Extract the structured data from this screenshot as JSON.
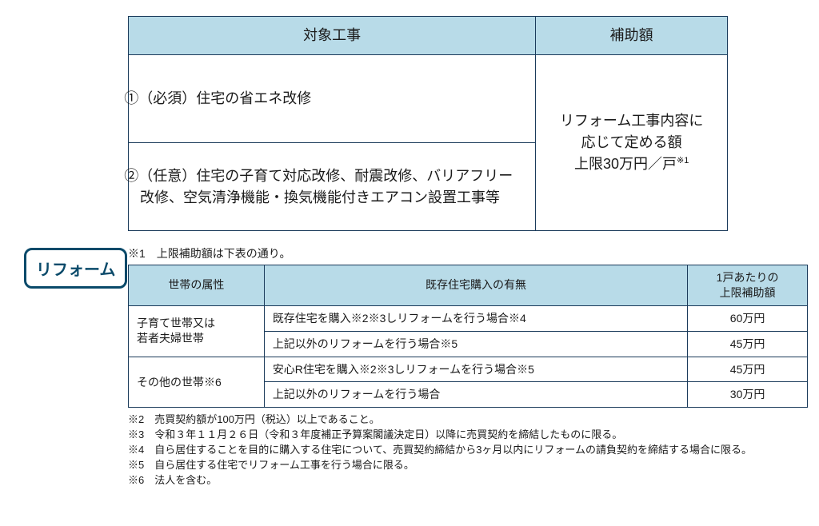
{
  "colors": {
    "header_bg": "#b8dbe8",
    "border": "#1a3a5a",
    "badge_border": "#0a4a6a",
    "text": "#1a1a1a",
    "page_bg": "#ffffff"
  },
  "badge": {
    "label": "リフォーム"
  },
  "table1": {
    "headers": {
      "work": "対象工事",
      "amount": "補助額"
    },
    "rows": [
      {
        "work": "①（必須）住宅の省エネ改修"
      },
      {
        "work": "②（任意）住宅の子育て対応改修、耐震改修、バリアフリー改修、空気清浄機能・換気機能付きエアコン設置工事等"
      }
    ],
    "amount_line1": "リフォーム工事内容に",
    "amount_line2": "応じて定める額",
    "amount_line3": "上限30万円／戸",
    "amount_sup": "※1"
  },
  "note1": "※1　上限補助額は下表の通り。",
  "table2": {
    "headers": {
      "attr": "世帯の属性",
      "cond": "既存住宅購入の有無",
      "cap": "1戸あたりの\n上限補助額"
    },
    "groups": [
      {
        "attr": "子育て世帯又は\n若者夫婦世帯",
        "rows": [
          {
            "cond": "既存住宅を購入※2※3しリフォームを行う場合※4",
            "cap": "60万円"
          },
          {
            "cond": "上記以外のリフォームを行う場合※5",
            "cap": "45万円"
          }
        ]
      },
      {
        "attr": "その他の世帯※6",
        "rows": [
          {
            "cond": "安心R住宅を購入※2※3しリフォームを行う場合※5",
            "cap": "45万円"
          },
          {
            "cond": "上記以外のリフォームを行う場合",
            "cap": "30万円"
          }
        ]
      }
    ]
  },
  "notes": [
    "※2　売買契約額が100万円（税込）以上であること。",
    "※3　令和３年１１月２６日（令和３年度補正予算案閣議決定日）以降に売買契約を締結したものに限る。",
    "※4　自ら居住することを目的に購入する住宅について、売買契約締結から3ヶ月以内にリフォームの請負契約を締結する場合に限る。",
    "※5　自ら居住する住宅でリフォーム工事を行う場合に限る。",
    "※6　法人を含む。"
  ]
}
